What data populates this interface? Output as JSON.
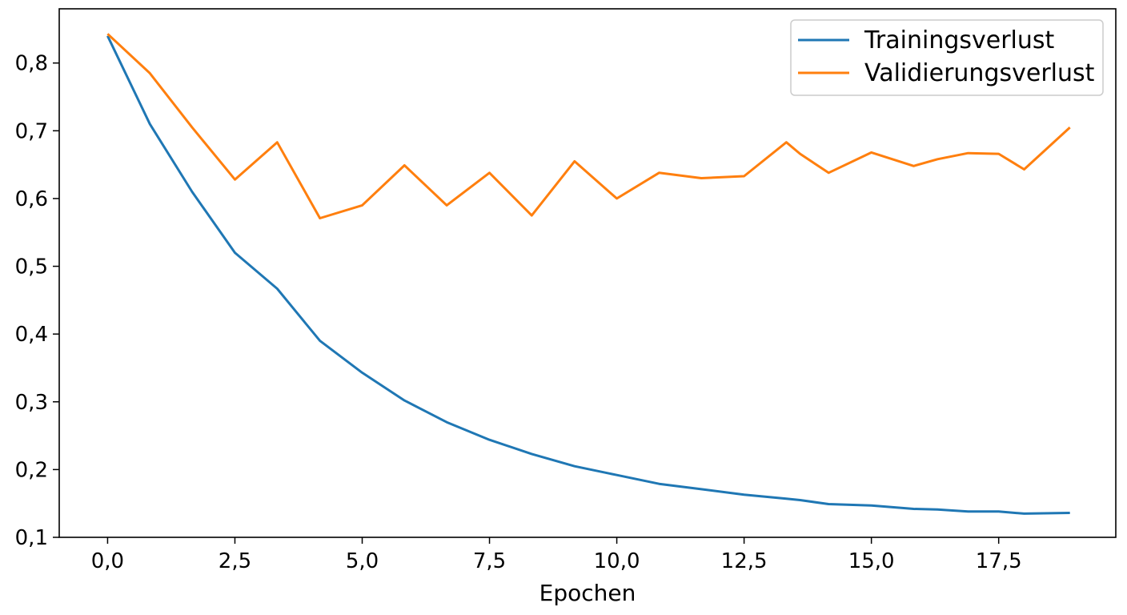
{
  "chart_data": {
    "type": "line",
    "title": "",
    "xlabel": "Epochen",
    "ylabel": "",
    "xlim": [
      -0.95,
      19.8
    ],
    "ylim": [
      0.1,
      0.88
    ],
    "xticks": [
      0.0,
      2.5,
      5.0,
      7.5,
      10.0,
      12.5,
      15.0,
      17.5
    ],
    "xtick_labels": [
      "0,0",
      "2,5",
      "5,0",
      "7,5",
      "10,0",
      "12,5",
      "15,0",
      "17,5"
    ],
    "yticks": [
      0.1,
      0.2,
      0.3,
      0.4,
      0.5,
      0.6,
      0.7,
      0.8
    ],
    "ytick_labels": [
      "0,1",
      "0,2",
      "0,3",
      "0,4",
      "0,5",
      "0,6",
      "0,7",
      "0,8"
    ],
    "grid": false,
    "legend_position": "top-right",
    "x": [
      0.0,
      0.83,
      1.66,
      2.5,
      3.33,
      4.17,
      5.0,
      5.83,
      6.66,
      7.5,
      8.33,
      9.17,
      10.0,
      10.83,
      11.66,
      12.5,
      13.33,
      13.6,
      14.16,
      15.0,
      15.83,
      16.3,
      16.9,
      17.5,
      18.0,
      18.9
    ],
    "series": [
      {
        "name": "Trainingsverlust",
        "color": "#1f77b4",
        "values": [
          0.84,
          0.71,
          0.61,
          0.52,
          0.467,
          0.39,
          0.343,
          0.302,
          0.27,
          0.244,
          0.223,
          0.205,
          0.192,
          0.179,
          0.171,
          0.163,
          0.157,
          0.155,
          0.149,
          0.147,
          0.142,
          0.141,
          0.138,
          0.138,
          0.135,
          0.136
        ]
      },
      {
        "name": "Validierungsverlust",
        "color": "#ff7f0e",
        "values": [
          0.843,
          0.785,
          0.705,
          0.628,
          0.683,
          0.571,
          0.59,
          0.649,
          0.59,
          0.638,
          0.575,
          0.655,
          0.6,
          0.638,
          0.63,
          0.633,
          0.683,
          0.666,
          0.638,
          0.668,
          0.648,
          0.658,
          0.667,
          0.666,
          0.643,
          0.705
        ]
      }
    ]
  }
}
